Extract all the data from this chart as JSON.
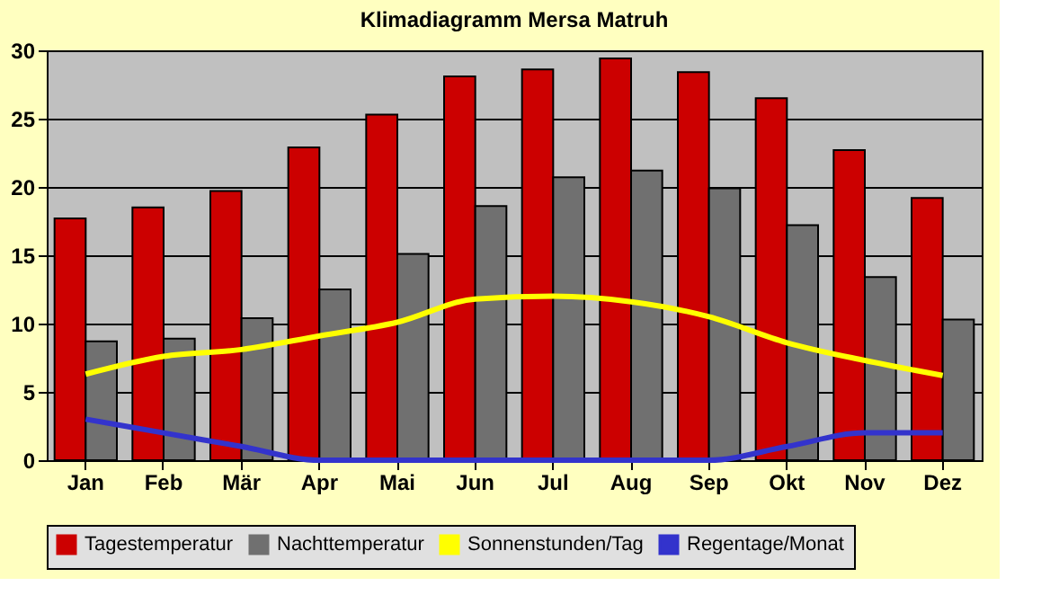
{
  "chart_data": {
    "type": "bar",
    "title": "Klimadiagramm Mersa Matruh",
    "categories": [
      "Jan",
      "Feb",
      "Mär",
      "Apr",
      "Mai",
      "Jun",
      "Jul",
      "Aug",
      "Sep",
      "Okt",
      "Nov",
      "Dez"
    ],
    "series": [
      {
        "name": "Tagestemperatur",
        "color": "#cc0000",
        "values": [
          17.7,
          18.5,
          19.7,
          22.9,
          25.3,
          28.1,
          28.6,
          29.4,
          28.4,
          26.5,
          22.7,
          19.2
        ]
      },
      {
        "name": "Nachttemperatur",
        "color": "#707070",
        "values": [
          8.7,
          8.9,
          10.4,
          12.5,
          15.1,
          18.6,
          20.7,
          21.2,
          19.9,
          17.2,
          13.4,
          10.3
        ]
      },
      {
        "name": "Sonnenstunden/Tag",
        "type": "line",
        "color": "#ffff00",
        "values": [
          6.3,
          7.6,
          8.1,
          9.1,
          10.1,
          11.8,
          12.0,
          11.6,
          10.5,
          8.6,
          7.3,
          6.2
        ]
      },
      {
        "name": "Regentage/Monat",
        "type": "line",
        "color": "#3333cc",
        "values": [
          3,
          2,
          1,
          0,
          0,
          0,
          0,
          0,
          0,
          1,
          2,
          2
        ]
      }
    ],
    "ylim": [
      0,
      30
    ],
    "yticks": [
      0,
      5,
      10,
      15,
      20,
      25,
      30
    ],
    "grid": "y",
    "legend": "bottom",
    "marker": "none"
  }
}
